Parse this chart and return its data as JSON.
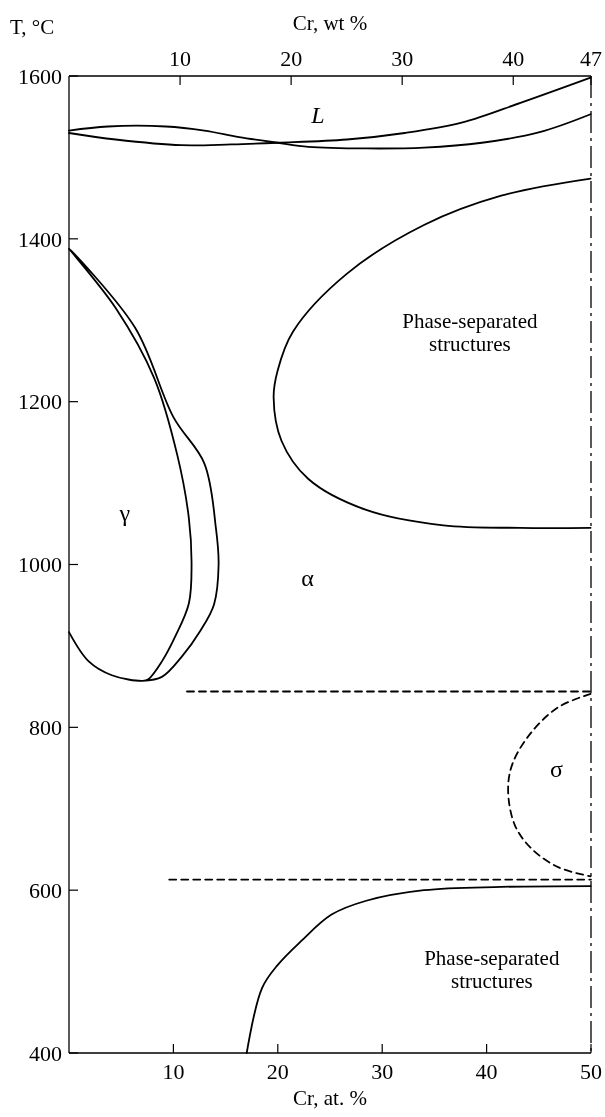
{
  "chart_data": {
    "type": "line",
    "xlabel": "Cr, at. %",
    "x2label": "Cr, wt %",
    "ylabel": "T, °C",
    "xlim": [
      0,
      50
    ],
    "xticks": [
      10,
      20,
      30,
      40,
      50
    ],
    "x2lim": [
      0,
      47
    ],
    "x2ticks": [
      10,
      20,
      30,
      40,
      47
    ],
    "ylim": [
      400,
      1600
    ],
    "yticks": [
      400,
      600,
      800,
      1000,
      1200,
      1400,
      1600
    ],
    "series": [
      {
        "color": "#000000",
        "x": [
          0,
          3.73,
          9.27,
          12.97,
          16.29,
          19.98,
          22.93,
          28.47,
          34.0,
          39.55,
          45.08,
          49.96
        ],
        "values": [
          1533,
          1538,
          1538,
          1533,
          1525,
          1518,
          1513,
          1511,
          1512,
          1518,
          1531,
          1553
        ]
      },
      {
        "color": "#000000",
        "x": [
          0,
          4.47,
          10.75,
          15.55,
          19.98,
          26.62,
          32.16,
          37.7,
          43.24,
          49.96
        ],
        "values": [
          1530,
          1522,
          1515,
          1516,
          1518,
          1522,
          1530,
          1543,
          1567,
          1598
        ]
      },
      {
        "color": "#000000",
        "x": [
          49.96,
          41.4,
          34.0,
          26.6,
          21.45,
          19.98,
          19.6,
          20.35,
          22.93,
          28.47,
          35.86,
          43.2,
          49.96
        ],
        "values": [
          1474,
          1453,
          1417,
          1357,
          1286,
          1238,
          1205,
          1152,
          1105,
          1067,
          1048,
          1045,
          1045
        ]
      },
      {
        "color": "#000000",
        "x": [
          0,
          1.89,
          4.1,
          7.05,
          7.6,
          8.9,
          10.19,
          11.48,
          11.74,
          11.48,
          10.38,
          8.16,
          4.47,
          0,
          6.32,
          10.0,
          12.97,
          14.07,
          14.33,
          13.89,
          12.6,
          10.75,
          8.9,
          7.05
        ],
        "values": [
          917,
          881,
          864,
          857,
          859,
          881,
          912,
          952,
          1000,
          1057,
          1134,
          1229,
          1315,
          1388,
          1291,
          1181,
          1124,
          1045,
          1000,
          951,
          919,
          886,
          862,
          857
        ]
      },
      {
        "color": "#000000",
        "x": [
          17.02,
          18.5,
          19.98,
          22.2,
          25.15,
          28.47,
          34.0,
          41.4,
          49.96
        ],
        "values": [
          400,
          480,
          508,
          537,
          570,
          587,
          600,
          604,
          605
        ]
      },
      {
        "color": "#000000",
        "line_style": "dashed",
        "x": [
          49.96,
          46.9,
          44.3,
          42.5,
          42.06,
          42.7,
          44.3,
          46.9,
          49.96
        ],
        "values": [
          841,
          825,
          794,
          756,
          723,
          680,
          651,
          628,
          617
        ]
      },
      {
        "color": "#000000",
        "line_style": "dashed",
        "x": [
          11.3,
          50
        ],
        "values": [
          844,
          844
        ]
      },
      {
        "color": "#000000",
        "line_style": "dashed",
        "x": [
          9.6,
          50
        ],
        "values": [
          613,
          613
        ]
      }
    ],
    "ref_lines": [
      {
        "axis": "x",
        "value": 50,
        "line_style": "dashed",
        "color": "#000000"
      }
    ],
    "annotations": [
      "L",
      "γ",
      "α",
      "Phase-separated\nstructures",
      "σ",
      "Phase-separated\nstructures"
    ]
  }
}
